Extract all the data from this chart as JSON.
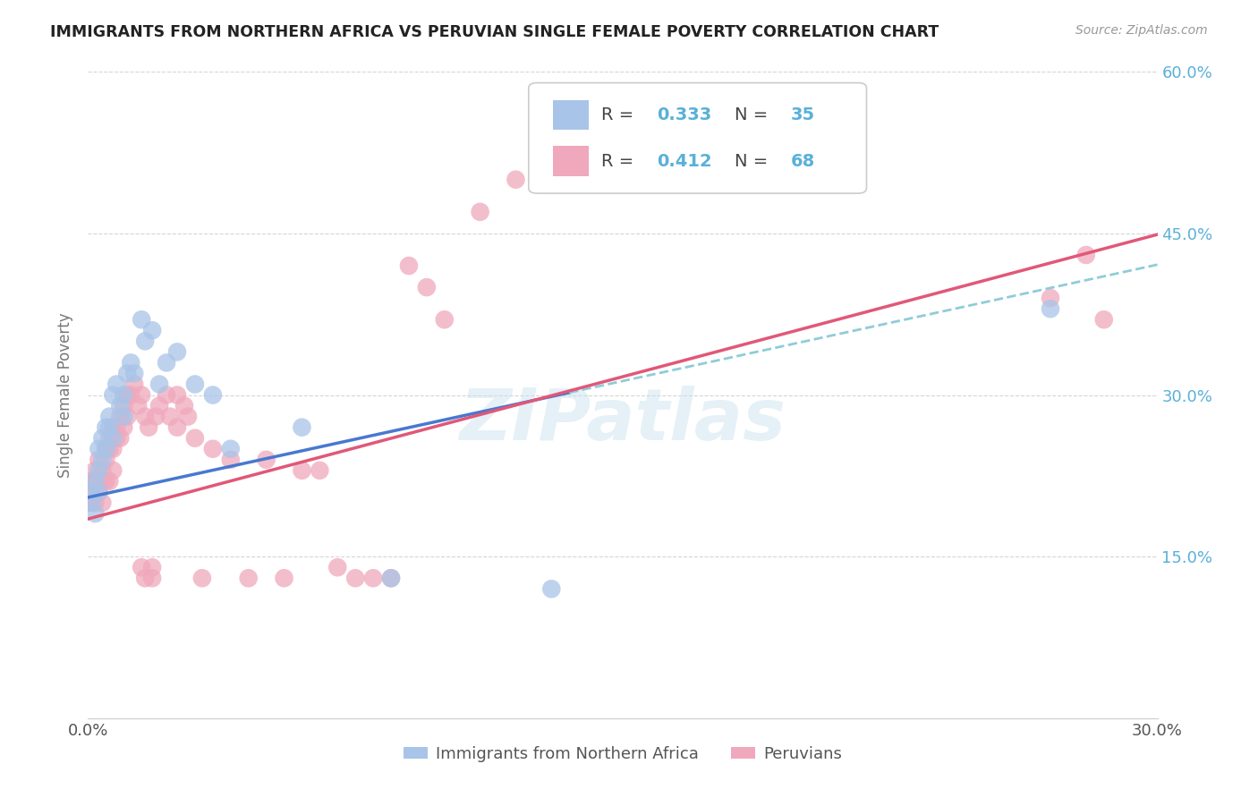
{
  "title": "IMMIGRANTS FROM NORTHERN AFRICA VS PERUVIAN SINGLE FEMALE POVERTY CORRELATION CHART",
  "source": "Source: ZipAtlas.com",
  "ylabel": "Single Female Poverty",
  "xmin": 0.0,
  "xmax": 0.3,
  "ymin": 0.0,
  "ymax": 0.6,
  "ytick_labels_right": [
    "15.0%",
    "30.0%",
    "45.0%",
    "60.0%"
  ],
  "ytick_vals_right": [
    0.15,
    0.3,
    0.45,
    0.6
  ],
  "blue_color": "#a8c4e8",
  "pink_color": "#f0a8bc",
  "blue_line_color": "#4878d0",
  "pink_line_color": "#e05878",
  "dashed_line_color": "#90ccd8",
  "watermark": "ZIPatlas",
  "blue_intercept": 0.205,
  "blue_slope": 0.72,
  "pink_intercept": 0.185,
  "pink_slope": 0.88,
  "blue_points_x": [
    0.001,
    0.001,
    0.002,
    0.002,
    0.003,
    0.003,
    0.003,
    0.004,
    0.004,
    0.005,
    0.005,
    0.006,
    0.006,
    0.007,
    0.007,
    0.008,
    0.009,
    0.01,
    0.01,
    0.011,
    0.012,
    0.013,
    0.015,
    0.016,
    0.018,
    0.02,
    0.022,
    0.025,
    0.03,
    0.035,
    0.04,
    0.06,
    0.085,
    0.13,
    0.27
  ],
  "blue_points_y": [
    0.21,
    0.2,
    0.22,
    0.19,
    0.25,
    0.23,
    0.21,
    0.26,
    0.24,
    0.27,
    0.25,
    0.28,
    0.27,
    0.3,
    0.26,
    0.31,
    0.29,
    0.28,
    0.3,
    0.32,
    0.33,
    0.32,
    0.37,
    0.35,
    0.36,
    0.31,
    0.33,
    0.34,
    0.31,
    0.3,
    0.25,
    0.27,
    0.13,
    0.12,
    0.38
  ],
  "pink_points_x": [
    0.001,
    0.001,
    0.001,
    0.002,
    0.002,
    0.002,
    0.003,
    0.003,
    0.003,
    0.004,
    0.004,
    0.004,
    0.005,
    0.005,
    0.005,
    0.006,
    0.006,
    0.006,
    0.007,
    0.007,
    0.007,
    0.008,
    0.008,
    0.009,
    0.009,
    0.01,
    0.01,
    0.011,
    0.011,
    0.012,
    0.013,
    0.014,
    0.015,
    0.015,
    0.016,
    0.016,
    0.017,
    0.018,
    0.018,
    0.019,
    0.02,
    0.022,
    0.023,
    0.025,
    0.025,
    0.027,
    0.028,
    0.03,
    0.032,
    0.035,
    0.04,
    0.045,
    0.05,
    0.055,
    0.06,
    0.065,
    0.07,
    0.075,
    0.08,
    0.085,
    0.09,
    0.095,
    0.1,
    0.11,
    0.12,
    0.27,
    0.28,
    0.285
  ],
  "pink_points_y": [
    0.22,
    0.21,
    0.2,
    0.23,
    0.22,
    0.2,
    0.24,
    0.22,
    0.21,
    0.23,
    0.22,
    0.2,
    0.25,
    0.24,
    0.22,
    0.26,
    0.25,
    0.22,
    0.27,
    0.25,
    0.23,
    0.27,
    0.26,
    0.28,
    0.26,
    0.29,
    0.27,
    0.3,
    0.28,
    0.3,
    0.31,
    0.29,
    0.14,
    0.3,
    0.13,
    0.28,
    0.27,
    0.13,
    0.14,
    0.28,
    0.29,
    0.3,
    0.28,
    0.3,
    0.27,
    0.29,
    0.28,
    0.26,
    0.13,
    0.25,
    0.24,
    0.13,
    0.24,
    0.13,
    0.23,
    0.23,
    0.14,
    0.13,
    0.13,
    0.13,
    0.42,
    0.4,
    0.37,
    0.47,
    0.5,
    0.39,
    0.43,
    0.37
  ]
}
